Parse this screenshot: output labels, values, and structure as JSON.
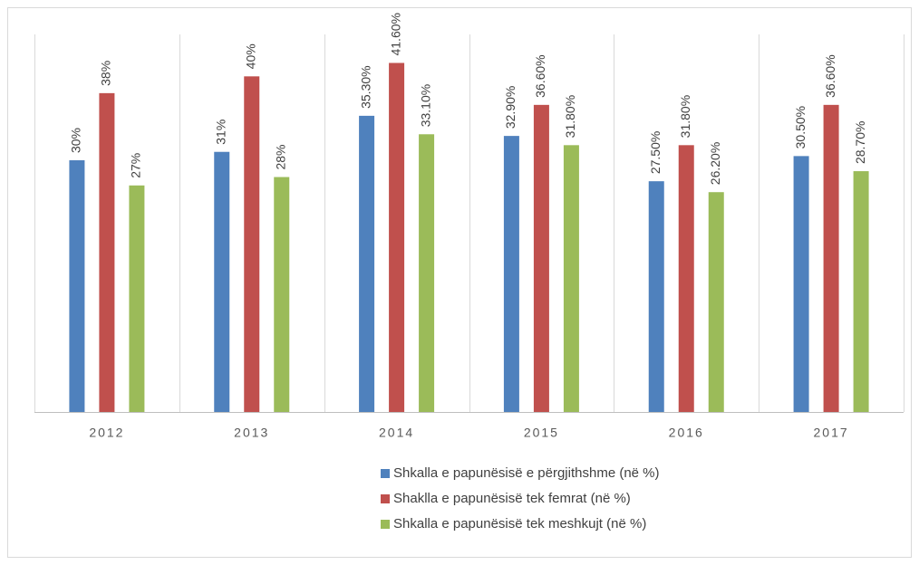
{
  "chart_data": {
    "type": "bar",
    "categories": [
      "2012",
      "2013",
      "2014",
      "2015",
      "2016",
      "2017"
    ],
    "series": [
      {
        "name": "Shkalla e papunësisë e përgjithshme (në %)",
        "color": "#4f81bd",
        "values": [
          30,
          31,
          35.3,
          32.9,
          27.5,
          30.5
        ],
        "value_labels": [
          "30%",
          "31%",
          "35.30%",
          "32.90%",
          "27.50%",
          "30.50%"
        ]
      },
      {
        "name": "Shaklla e papunësisë tek femrat (në %)",
        "color": "#c0504d",
        "values": [
          38,
          40,
          41.6,
          36.6,
          31.8,
          36.6
        ],
        "value_labels": [
          "38%",
          "40%",
          "41.60%",
          "36.60%",
          "31.80%",
          "36.60%"
        ]
      },
      {
        "name": "Shkalla e papunësisë tek meshkujt (në %)",
        "color": "#9bbb59",
        "values": [
          27,
          28,
          33.1,
          31.8,
          26.2,
          28.7
        ],
        "value_labels": [
          "27%",
          "28%",
          "33.10%",
          "31.80%",
          "26.20%",
          "28.70%"
        ]
      }
    ],
    "ylim": [
      0,
      45
    ]
  }
}
